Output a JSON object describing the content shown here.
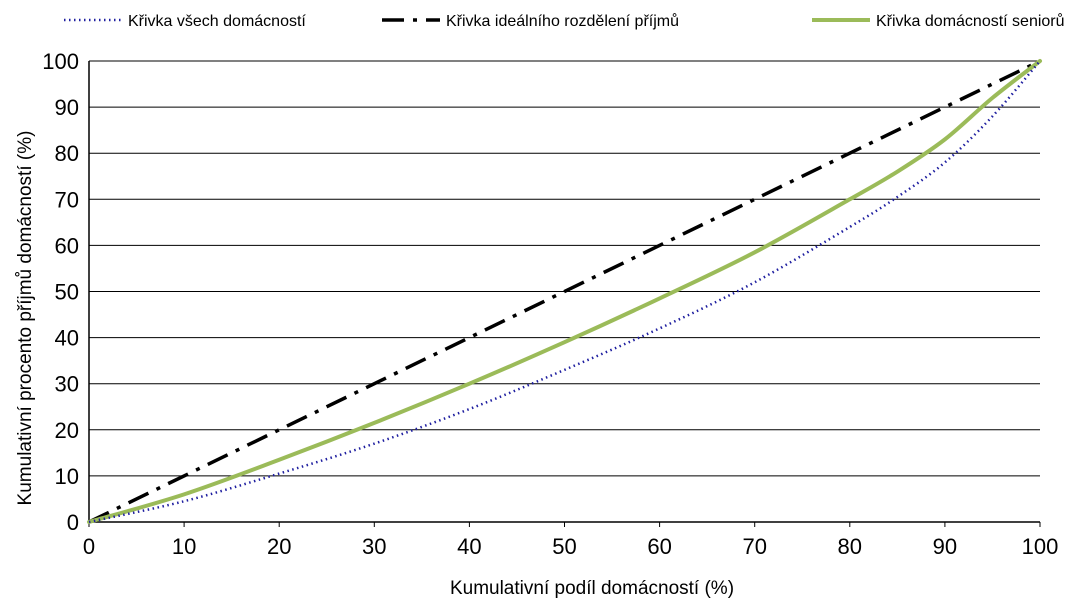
{
  "chart_data": {
    "type": "line",
    "title": "",
    "xlabel": "Kumulativní podíl domácností (%)",
    "ylabel": "Kumulativní procento příjmů domácností (%)",
    "xlim": [
      0,
      100
    ],
    "ylim": [
      0,
      100
    ],
    "xticks": [
      0,
      10,
      20,
      30,
      40,
      50,
      60,
      70,
      80,
      90,
      100
    ],
    "yticks": [
      0,
      10,
      20,
      30,
      40,
      50,
      60,
      70,
      80,
      90,
      100
    ],
    "grid": "horizontal",
    "legend_position": "top",
    "series": [
      {
        "name": "Křivka všech domácností",
        "color": "#1f1fa0",
        "style": "dotted",
        "x": [
          0,
          10,
          20,
          30,
          40,
          50,
          60,
          70,
          80,
          85,
          90,
          95,
          100
        ],
        "y": [
          0,
          4.5,
          10.5,
          17,
          24.5,
          33,
          42,
          52,
          64,
          70.5,
          78,
          88,
          100
        ]
      },
      {
        "name": "Křivka ideálního rozdělení příjmů",
        "color": "#000000",
        "style": "dashdot",
        "x": [
          0,
          100
        ],
        "y": [
          0,
          100
        ]
      },
      {
        "name": "Křivka domácností seniorů",
        "color": "#9bbb59",
        "style": "solid",
        "x": [
          0,
          10,
          20,
          30,
          40,
          50,
          60,
          70,
          80,
          85,
          90,
          95,
          100
        ],
        "y": [
          0,
          6,
          13.5,
          21.5,
          30,
          39,
          48.5,
          58.5,
          70,
          76,
          83,
          92,
          100
        ]
      }
    ]
  }
}
